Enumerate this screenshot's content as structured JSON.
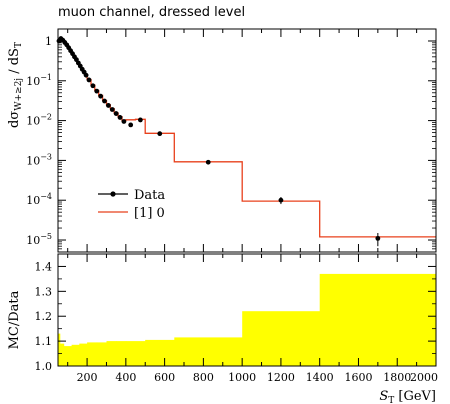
{
  "title": "muon channel, dressed level",
  "chart_data": [
    {
      "type": "line",
      "panel": "main",
      "ylabel": "dσ_{W+≥2j} / dS_T",
      "xlabel": "",
      "yscale": "log",
      "xlim": [
        50,
        2000
      ],
      "ylim": [
        5e-06,
        2.0
      ],
      "legend": "left",
      "yticks": [
        {
          "v": 1,
          "label": "1",
          "base": "",
          "exp": ""
        },
        {
          "v": 0.1,
          "label": "",
          "base": "10",
          "exp": "−1"
        },
        {
          "v": 0.01,
          "label": "",
          "base": "10",
          "exp": "−2"
        },
        {
          "v": 0.001,
          "label": "",
          "base": "10",
          "exp": "−3"
        },
        {
          "v": 0.0001,
          "label": "",
          "base": "10",
          "exp": "−4"
        },
        {
          "v": 1e-05,
          "label": "",
          "base": "10",
          "exp": "−5"
        }
      ],
      "series": [
        {
          "name": "Data",
          "color": "#000000",
          "style": "points",
          "x": [
            55,
            65,
            75,
            85,
            95,
            105,
            115,
            125,
            135,
            145,
            155,
            165,
            175,
            185,
            195,
            210,
            230,
            250,
            270,
            290,
            310,
            330,
            350,
            370,
            390,
            425,
            475,
            575,
            825,
            1200,
            1700
          ],
          "y": [
            1.0,
            1.15,
            1.05,
            0.92,
            0.8,
            0.68,
            0.57,
            0.48,
            0.4,
            0.34,
            0.28,
            0.235,
            0.195,
            0.165,
            0.138,
            0.105,
            0.075,
            0.055,
            0.041,
            0.031,
            0.024,
            0.019,
            0.015,
            0.012,
            0.0095,
            0.0078,
            0.0104,
            0.0047,
            0.0009,
            0.0001,
            1.1e-05
          ],
          "yerr": [
            0,
            0,
            0,
            0,
            0,
            0,
            0,
            0,
            0,
            0,
            0,
            0,
            0,
            0,
            0,
            0,
            0,
            0,
            0,
            0,
            0,
            0,
            0,
            0,
            0,
            0,
            0,
            0,
            0,
            2e-05,
            4e-06
          ]
        },
        {
          "name": "[1] 0",
          "color": "#e8401c",
          "style": "step",
          "edges": [
            50,
            60,
            70,
            80,
            90,
            100,
            110,
            120,
            130,
            140,
            150,
            160,
            170,
            180,
            190,
            200,
            220,
            240,
            260,
            280,
            300,
            320,
            340,
            360,
            380,
            400,
            450,
            500,
            650,
            1000,
            1400,
            2000
          ],
          "y": [
            1.05,
            1.2,
            1.1,
            0.95,
            0.82,
            0.7,
            0.59,
            0.5,
            0.42,
            0.35,
            0.29,
            0.245,
            0.205,
            0.17,
            0.142,
            0.108,
            0.078,
            0.057,
            0.043,
            0.032,
            0.025,
            0.02,
            0.0155,
            0.0125,
            0.01,
            0.0105,
            0.0108,
            0.0048,
            0.00092,
            9.5e-05,
            1.2e-05
          ]
        }
      ]
    },
    {
      "type": "area",
      "panel": "ratio",
      "ylabel": "MC/Data",
      "xlabel": "S_T [GeV]",
      "xlim": [
        50,
        2000
      ],
      "ylim": [
        1.0,
        1.45
      ],
      "grid": false,
      "yticks": [
        "1.0",
        "1.1",
        "1.2",
        "1.3",
        "1.4"
      ],
      "xticks": [
        "200",
        "400",
        "600",
        "800",
        "1000",
        "1200",
        "1400",
        "1600",
        "1800",
        "2000"
      ],
      "series": [
        {
          "name": "",
          "color": "#ffff00",
          "edges": [
            50,
            60,
            80,
            120,
            160,
            200,
            250,
            300,
            350,
            400,
            500,
            650,
            1000,
            1400,
            2000
          ],
          "y": [
            1.13,
            1.09,
            1.08,
            1.085,
            1.09,
            1.095,
            1.095,
            1.1,
            1.1,
            1.1,
            1.105,
            1.115,
            1.22,
            1.37
          ]
        }
      ]
    }
  ]
}
